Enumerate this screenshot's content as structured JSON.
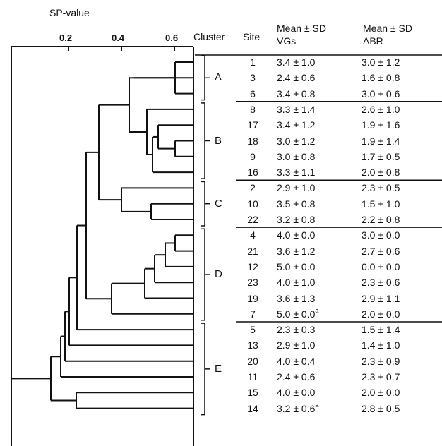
{
  "axis": {
    "title": "SP-value",
    "ticks": [
      "0.2",
      "0.4",
      "0.6"
    ]
  },
  "headers": {
    "cluster": "Cluster",
    "site": "Site",
    "vgs": [
      "Mean ± SD",
      "VGs"
    ],
    "abr": [
      "Mean ± SD",
      "ABR"
    ]
  },
  "clusters": [
    {
      "label": "A",
      "sites": [
        1,
        3,
        6
      ]
    },
    {
      "label": "B",
      "sites": [
        8,
        17,
        18,
        9,
        16
      ]
    },
    {
      "label": "C",
      "sites": [
        2,
        10,
        22
      ]
    },
    {
      "label": "D",
      "sites": [
        4,
        21,
        12,
        23,
        19,
        7
      ]
    },
    {
      "label": "E",
      "sites": [
        5,
        13,
        20,
        11,
        15,
        14
      ]
    }
  ],
  "rows": [
    {
      "site": "1",
      "vgs": "3.4 ± 1.0",
      "vgs_sup": "",
      "abr": "3.0 ± 1.2"
    },
    {
      "site": "3",
      "vgs": "2.4 ± 0.6",
      "vgs_sup": "",
      "abr": "1.6 ± 0.8"
    },
    {
      "site": "6",
      "vgs": "3.4 ± 0.8",
      "vgs_sup": "",
      "abr": "3.0 ± 0.6"
    },
    {
      "site": "8",
      "vgs": "3.3 ± 1.4",
      "vgs_sup": "",
      "abr": "2.6 ± 1.0"
    },
    {
      "site": "17",
      "vgs": "3.4 ± 1.2",
      "vgs_sup": "",
      "abr": "1.9 ± 1.6"
    },
    {
      "site": "18",
      "vgs": "3.0 ± 1.2",
      "vgs_sup": "",
      "abr": "1.9 ± 1.4"
    },
    {
      "site": "9",
      "vgs": "3.0 ± 0.8",
      "vgs_sup": "",
      "abr": "1.7  ± 0.5"
    },
    {
      "site": "16",
      "vgs": "3.3 ± 1.1",
      "vgs_sup": "",
      "abr": "2.0 ± 0.8"
    },
    {
      "site": "2",
      "vgs": "2.9 ± 1.0",
      "vgs_sup": "",
      "abr": "2.3 ± 0.5"
    },
    {
      "site": "10",
      "vgs": "3.5 ± 0.8",
      "vgs_sup": "",
      "abr": "1.5 ± 1.0"
    },
    {
      "site": "22",
      "vgs": "3.2 ± 0.8",
      "vgs_sup": "",
      "abr": "2.2 ± 0.8"
    },
    {
      "site": "4",
      "vgs": "4.0 ± 0.0",
      "vgs_sup": "",
      "abr": "3.0 ± 0.0"
    },
    {
      "site": "21",
      "vgs": "3.6 ± 1.2",
      "vgs_sup": "",
      "abr": "2.7 ± 0.6"
    },
    {
      "site": "12",
      "vgs": "5.0 ± 0.0",
      "vgs_sup": "",
      "abr": "0.0 ± 0.0"
    },
    {
      "site": "23",
      "vgs": "4.0 ± 1.0",
      "vgs_sup": "",
      "abr": "2.3 ± 0.6"
    },
    {
      "site": "19",
      "vgs": "3.6 ± 1.3",
      "vgs_sup": "",
      "abr": "2.9 ± 1.1"
    },
    {
      "site": "7",
      "vgs": "5.0 ± 0.0",
      "vgs_sup": "a",
      "abr": "2.0 ± 0.0"
    },
    {
      "site": "5",
      "vgs": "2.3 ± 0.3",
      "vgs_sup": "",
      "abr": "1.5 ± 1.4"
    },
    {
      "site": "13",
      "vgs": "2.9 ± 1.0",
      "vgs_sup": "",
      "abr": "1.4 ± 1.0"
    },
    {
      "site": "20",
      "vgs": "4.0 ± 0.4",
      "vgs_sup": "",
      "abr": "2.3 ± 0.9"
    },
    {
      "site": "11",
      "vgs": "2.4 ± 0.6",
      "vgs_sup": "",
      "abr": "2.3 ± 0.7"
    },
    {
      "site": "15",
      "vgs": "4.0 ± 0.0",
      "vgs_sup": "",
      "abr": "2.0 ± 0.0"
    },
    {
      "site": "14",
      "vgs": "3.2 ± 0.6",
      "vgs_sup": "a",
      "abr": "2.8 ± 0.5"
    }
  ]
}
